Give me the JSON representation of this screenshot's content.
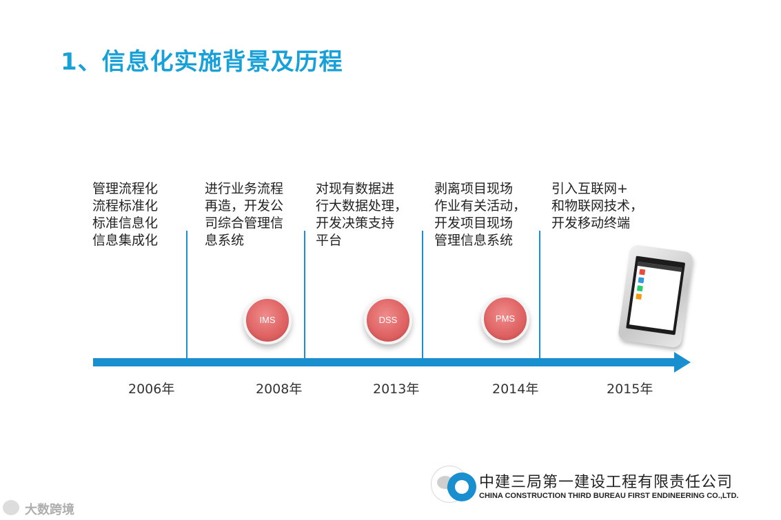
{
  "title": "1、信息化实施背景及历程",
  "phases": [
    {
      "lines": [
        "管理流程化",
        "流程标准化",
        "标准信息化",
        "信息集成化"
      ],
      "year": "2006年"
    },
    {
      "lines": [
        "进行业务流程",
        "再造，开发公",
        "司综合管理信",
        "息系统"
      ],
      "year": "2008年"
    },
    {
      "lines": [
        "对现有数据进",
        "行大数据处理，",
        "开发决策支持",
        "平台"
      ],
      "year": "2013年"
    },
    {
      "lines": [
        "剥离项目现场",
        "作业有关活动，",
        "开发项目现场",
        "管理信息系统"
      ],
      "year": "2014年"
    },
    {
      "lines": [
        "引入互联网+",
        "和物联网技术，",
        "开发移动终端"
      ],
      "year": "2015年"
    }
  ],
  "badges": [
    "IMS",
    "DSS",
    "PMS"
  ],
  "company": {
    "name_cn": "中建三局第一建设工程有限责任公司",
    "name_en": "CHINA CONSTRUCTION THIRD BUREAU FIRST ENDINEERING CO.,LTD."
  },
  "watermark": "大数跨境",
  "colors": {
    "accent": "#1a8fd0",
    "title": "#18a0d8",
    "badge": "#e06464"
  }
}
